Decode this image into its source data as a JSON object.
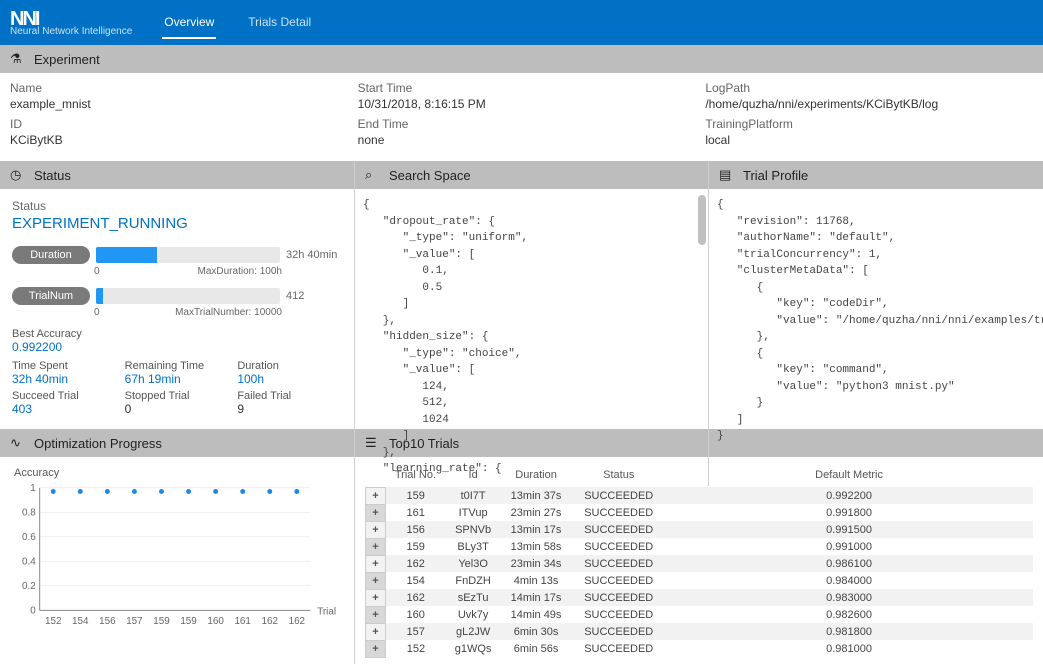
{
  "brand": {
    "name": "Neural Network Intelligence",
    "mark": "NNI"
  },
  "nav": {
    "overview": "Overview",
    "trials": "Trials Detail"
  },
  "sections": {
    "experiment": "Experiment",
    "status": "Status",
    "search_space": "Search Space",
    "trial_profile": "Trial Profile",
    "opt_progress": "Optimization Progress",
    "top10": "Top10 Trials"
  },
  "experiment": {
    "fields": {
      "name_label": "Name",
      "name": "example_mnist",
      "id_label": "ID",
      "id": "KCiBytKB",
      "start_label": "Start Time",
      "start": "10/31/2018, 8:16:15 PM",
      "end_label": "End Time",
      "end": "none",
      "logpath_label": "LogPath",
      "logpath": "/home/quzha/nni/experiments/KCiBytKB/log",
      "platform_label": "TrainingPlatform",
      "platform": "local"
    }
  },
  "status": {
    "label": "Status",
    "value": "EXPERIMENT_RUNNING",
    "duration": {
      "label": "Duration",
      "value": "32h 40min",
      "zero": "0",
      "max_label": "MaxDuration: 100h",
      "fill_pct": 33
    },
    "trialnum": {
      "label": "TrialNum",
      "value": "412",
      "zero": "0",
      "max_label": "MaxTrialNumber: 10000",
      "fill_pct": 4
    },
    "stats": {
      "best_acc_label": "Best Accuracy",
      "best_acc": "0.992200",
      "time_spent_label": "Time Spent",
      "time_spent": "32h 40min",
      "remaining_label": "Remaining Time",
      "remaining": "67h 19min",
      "duration_label": "Duration",
      "duration": "100h",
      "succeed_label": "Succeed Trial",
      "succeed": "403",
      "stopped_label": "Stopped Trial",
      "stopped": "0",
      "failed_label": "Failed Trial",
      "failed": "9"
    }
  },
  "search_space_text": "{\n   \"dropout_rate\": {\n      \"_type\": \"uniform\",\n      \"_value\": [\n         0.1,\n         0.5\n      ]\n   },\n   \"hidden_size\": {\n      \"_type\": \"choice\",\n      \"_value\": [\n         124,\n         512,\n         1024\n      ]\n   },\n   \"learning_rate\": {",
  "trial_profile_text": "{\n   \"revision\": 11768,\n   \"authorName\": \"default\",\n   \"trialConcurrency\": 1,\n   \"clusterMetaData\": [\n      {\n         \"key\": \"codeDir\",\n         \"value\": \"/home/quzha/nni/nni/examples/trials/mnist-hyperband/.\"\n      },\n      {\n         \"key\": \"command\",\n         \"value\": \"python3 mnist.py\"\n      }\n   ]\n}",
  "chart": {
    "ylabel": "Accuracy",
    "xlabel": "Trial",
    "yticks": [
      "1",
      "0.8",
      "0.6",
      "0.4",
      "0.2",
      "0"
    ],
    "xticks": [
      "152",
      "154",
      "156",
      "157",
      "159",
      "159",
      "160",
      "161",
      "162",
      "162"
    ],
    "point_color": "#1e88e5",
    "grid_color": "#e0e0e0",
    "axis_color": "#888888",
    "points_y": [
      0.97,
      0.97,
      0.97,
      0.97,
      0.97,
      0.97,
      0.97,
      0.97,
      0.97,
      0.97
    ]
  },
  "trials": {
    "headers": {
      "trialno": "Trial No.",
      "id": "Id",
      "duration": "Duration",
      "status": "Status",
      "metric": "Default Metric"
    },
    "rows": [
      {
        "no": "159",
        "id": "t0I7T",
        "dur": "13min 37s",
        "status": "SUCCEEDED",
        "metric": "0.992200"
      },
      {
        "no": "161",
        "id": "ITVup",
        "dur": "23min 27s",
        "status": "SUCCEEDED",
        "metric": "0.991800"
      },
      {
        "no": "156",
        "id": "SPNVb",
        "dur": "13min 17s",
        "status": "SUCCEEDED",
        "metric": "0.991500"
      },
      {
        "no": "159",
        "id": "BLy3T",
        "dur": "13min 58s",
        "status": "SUCCEEDED",
        "metric": "0.991000"
      },
      {
        "no": "162",
        "id": "Yel3O",
        "dur": "23min 34s",
        "status": "SUCCEEDED",
        "metric": "0.986100"
      },
      {
        "no": "154",
        "id": "FnDZH",
        "dur": "4min 13s",
        "status": "SUCCEEDED",
        "metric": "0.984000"
      },
      {
        "no": "162",
        "id": "sEzTu",
        "dur": "14min 17s",
        "status": "SUCCEEDED",
        "metric": "0.983000"
      },
      {
        "no": "160",
        "id": "Uvk7y",
        "dur": "14min 49s",
        "status": "SUCCEEDED",
        "metric": "0.982600"
      },
      {
        "no": "157",
        "id": "gL2JW",
        "dur": "6min 30s",
        "status": "SUCCEEDED",
        "metric": "0.981800"
      },
      {
        "no": "152",
        "id": "g1WQs",
        "dur": "6min 56s",
        "status": "SUCCEEDED",
        "metric": "0.981000"
      }
    ]
  }
}
